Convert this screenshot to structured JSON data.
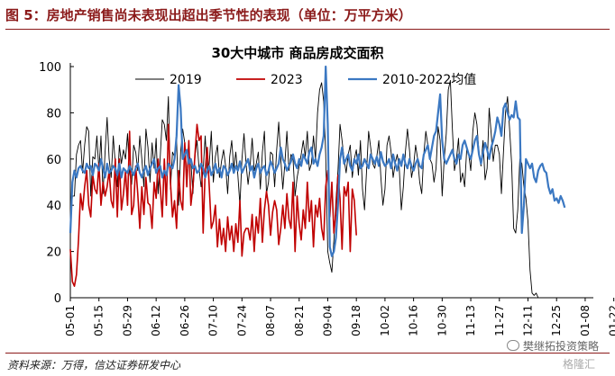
{
  "figure_title": "图 5：房地产销售尚未表现出超出季节性的表现（单位：万平方米）",
  "source": "资料来源：万得，信达证券研发中心",
  "watermark": "樊继拓投资策略",
  "watermark_sub": "格隆汇",
  "chart_data": {
    "type": "line",
    "title": "30大中城市  商品房成交面积",
    "ylim": [
      0,
      100
    ],
    "yticks": [
      0,
      20,
      40,
      60,
      80,
      100
    ],
    "grid": false,
    "legend_position": "top",
    "x_tick_labels": [
      "05-01",
      "05-15",
      "05-29",
      "06-12",
      "06-26",
      "07-10",
      "07-24",
      "08-07",
      "08-21",
      "09-04",
      "09-18",
      "10-02",
      "10-16",
      "10-30",
      "11-13",
      "11-27",
      "12-11",
      "12-25",
      "01-08",
      "01-22"
    ],
    "series": [
      {
        "name": "2019",
        "color": "#000000",
        "start_day": 0,
        "values": [
          29,
          44,
          44,
          62,
          66,
          68,
          54,
          66,
          74,
          72,
          44,
          61,
          60,
          70,
          55,
          70,
          45,
          63,
          78,
          60,
          52,
          70,
          58,
          48,
          66,
          58,
          64,
          60,
          71,
          54,
          49,
          66,
          63,
          55,
          70,
          60,
          48,
          73,
          65,
          50,
          67,
          56,
          69,
          45,
          61,
          77,
          75,
          68,
          87,
          47,
          63,
          61,
          68,
          40,
          63,
          73,
          67,
          52,
          62,
          59,
          45,
          61,
          68,
          56,
          48,
          55,
          70,
          54,
          58,
          72,
          50,
          61,
          66,
          52,
          59,
          64,
          57,
          45,
          61,
          68,
          56,
          63,
          53,
          40,
          60,
          71,
          58,
          49,
          57,
          69,
          55,
          58,
          63,
          47,
          63,
          72,
          45,
          50,
          63,
          62,
          48,
          64,
          76,
          60,
          47,
          58,
          72,
          55,
          62,
          60,
          44,
          52,
          57,
          62,
          68,
          61,
          72,
          55,
          58,
          70,
          60,
          80,
          90,
          93,
          85,
          62,
          20,
          15,
          11,
          25,
          42,
          55,
          75,
          68,
          60,
          54,
          62,
          66,
          52,
          60,
          64,
          53,
          68,
          47,
          38,
          55,
          72,
          65,
          58,
          56,
          61,
          68,
          52,
          40,
          47,
          66,
          70,
          63,
          52,
          58,
          62,
          56,
          38,
          48,
          63,
          73,
          64,
          52,
          57,
          66,
          60,
          50,
          45,
          62,
          72,
          66,
          60,
          58,
          50,
          56,
          74,
          68,
          44,
          60,
          71,
          90,
          94,
          73,
          55,
          60,
          69,
          50,
          54,
          48,
          64,
          62,
          55,
          72,
          80,
          75,
          63,
          57,
          68,
          51,
          56,
          82,
          71,
          59,
          66,
          66,
          62,
          45,
          63,
          80,
          87,
          73,
          58,
          30,
          28,
          38,
          60,
          58,
          48,
          43,
          33,
          12,
          2,
          1,
          2,
          0,
          0,
          0,
          0
        ]
      },
      {
        "name": "2023",
        "color": "#c00000",
        "start_day": 0,
        "values": [
          21,
          7,
          5,
          10,
          25,
          45,
          38,
          48,
          55,
          40,
          35,
          53,
          47,
          45,
          58,
          40,
          50,
          44,
          48,
          55,
          42,
          39,
          60,
          35,
          60,
          38,
          45,
          55,
          40,
          72,
          36,
          40,
          57,
          45,
          30,
          48,
          36,
          52,
          41,
          40,
          30,
          50,
          43,
          60,
          48,
          35,
          60,
          40,
          75,
          50,
          35,
          42,
          30,
          55,
          42,
          38,
          67,
          48,
          68,
          40,
          48,
          62,
          75,
          68,
          70,
          28,
          55,
          65,
          48,
          30,
          33,
          40,
          22,
          34,
          23,
          30,
          20,
          35,
          25,
          31,
          20,
          32,
          24,
          42,
          18,
          28,
          30,
          30,
          25,
          36,
          20,
          35,
          28,
          43,
          24,
          38,
          46,
          40,
          27,
          37,
          42,
          38,
          23,
          30,
          40,
          30,
          45,
          34,
          30,
          50,
          20,
          44,
          32,
          25,
          38,
          30,
          50,
          33,
          42,
          22,
          40,
          35,
          43,
          30,
          25,
          48,
          55,
          35,
          50,
          28,
          37,
          53,
          43,
          21,
          48,
          44,
          50,
          20,
          47,
          42,
          27
        ]
      },
      {
        "name": "2010-2022均值",
        "color": "#3b78c2",
        "start_day": 0,
        "values": [
          28,
          50,
          55,
          52,
          56,
          57,
          55,
          54,
          58,
          56,
          57,
          53,
          58,
          57,
          55,
          60,
          56,
          52,
          58,
          54,
          55,
          57,
          56,
          53,
          58,
          52,
          56,
          55,
          54,
          57,
          55,
          53,
          56,
          58,
          54,
          52,
          55,
          57,
          53,
          56,
          58,
          60,
          54,
          56,
          57,
          52,
          55,
          53,
          58,
          57,
          56,
          60,
          70,
          92,
          82,
          60,
          62,
          64,
          58,
          60,
          56,
          57,
          54,
          55,
          58,
          56,
          52,
          55,
          57,
          53,
          55,
          58,
          54,
          56,
          52,
          57,
          56,
          53,
          55,
          58,
          54,
          57,
          55,
          59,
          54,
          56,
          58,
          60,
          55,
          57,
          52,
          56,
          58,
          54,
          56,
          57,
          53,
          55,
          59,
          57,
          54,
          56,
          58,
          65,
          60,
          58,
          55,
          57,
          59,
          62,
          58,
          56,
          60,
          57,
          62,
          60,
          58,
          63,
          65,
          58,
          60,
          57,
          62,
          65,
          70,
          100,
          75,
          22,
          18,
          20,
          26,
          40,
          60,
          65,
          58,
          60,
          62,
          57,
          55,
          60,
          58,
          62,
          56,
          57,
          60,
          58,
          56,
          62,
          60,
          58,
          61,
          57,
          63,
          59,
          57,
          58,
          60,
          56,
          62,
          58,
          55,
          60,
          57,
          62,
          58,
          56,
          60,
          57,
          55,
          58,
          60,
          57,
          56,
          62,
          64,
          66,
          60,
          65,
          70,
          72,
          80,
          88,
          68,
          60,
          58,
          60,
          62,
          64,
          60,
          58,
          62,
          60,
          66,
          68,
          65,
          62,
          60,
          64,
          68,
          70,
          62,
          58,
          63,
          67,
          64,
          60,
          65,
          68,
          72,
          78,
          75,
          70,
          82,
          84,
          80,
          77,
          79,
          78,
          85,
          78,
          77,
          28,
          40,
          60,
          58,
          56,
          58,
          52,
          50,
          55,
          57,
          58,
          55,
          54,
          48,
          45,
          47,
          42,
          43,
          41,
          44,
          42,
          39
        ]
      }
    ]
  }
}
